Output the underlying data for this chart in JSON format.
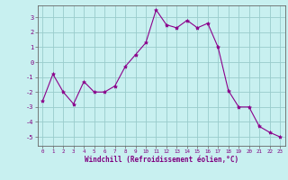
{
  "x": [
    0,
    1,
    2,
    3,
    4,
    5,
    6,
    7,
    8,
    9,
    10,
    11,
    12,
    13,
    14,
    15,
    16,
    17,
    18,
    19,
    20,
    21,
    22,
    23
  ],
  "y": [
    -2.6,
    -0.8,
    -2.0,
    -2.8,
    -1.3,
    -2.0,
    -2.0,
    -1.6,
    -0.3,
    0.5,
    1.3,
    3.5,
    2.5,
    2.3,
    2.8,
    2.3,
    2.6,
    1.0,
    -1.9,
    -3.0,
    -3.0,
    -4.3,
    -4.7,
    -5.0
  ],
  "line_color": "#8B008B",
  "marker": "*",
  "marker_size": 3,
  "bg_color": "#c8f0f0",
  "grid_color": "#99cccc",
  "xlabel": "Windchill (Refroidissement éolien,°C)",
  "xlim": [
    -0.5,
    23.5
  ],
  "ylim": [
    -5.6,
    3.8
  ],
  "yticks": [
    -5,
    -4,
    -3,
    -2,
    -1,
    0,
    1,
    2,
    3
  ],
  "xticks": [
    0,
    1,
    2,
    3,
    4,
    5,
    6,
    7,
    8,
    9,
    10,
    11,
    12,
    13,
    14,
    15,
    16,
    17,
    18,
    19,
    20,
    21,
    22,
    23
  ],
  "tick_color": "#800080",
  "label_color": "#800080",
  "spine_color": "#666666"
}
